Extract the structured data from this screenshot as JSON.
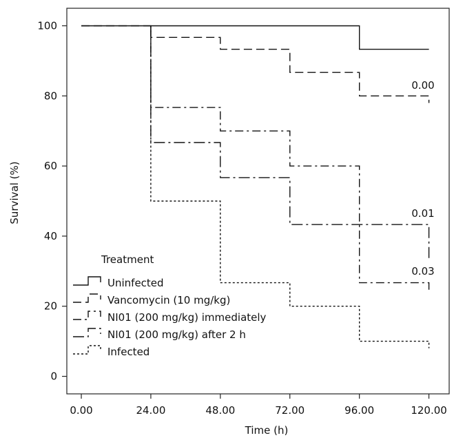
{
  "chart_data": {
    "type": "line",
    "step": true,
    "xlabel": "Time (h)",
    "ylabel": "Survival (%)",
    "xlim": [
      -5,
      127
    ],
    "ylim": [
      -5,
      105
    ],
    "x_ticks": [
      0,
      24,
      48,
      72,
      96,
      120
    ],
    "x_tick_labels": [
      "0.00",
      "24.00",
      "48.00",
      "72.00",
      "96.00",
      "120.00"
    ],
    "y_ticks": [
      0,
      20,
      40,
      60,
      80,
      100
    ],
    "y_tick_labels": [
      "0",
      "20",
      "40",
      "60",
      "80",
      "100"
    ],
    "grid": false,
    "legend": {
      "title": "Treatment",
      "placement": "bottom-left",
      "entries": [
        "Uninfected",
        "Vancomycin (10 mg/kg)",
        "NI01 (200 mg/kg) immediately",
        "NI01 (200 mg/kg) after 2 h",
        "Infected"
      ]
    },
    "series": [
      {
        "name": "Uninfected",
        "dash": "solid",
        "points": [
          [
            0,
            100
          ],
          [
            24,
            100
          ],
          [
            96,
            100
          ],
          [
            96,
            93.3
          ],
          [
            120,
            93.3
          ]
        ]
      },
      {
        "name": "Vancomycin (10 mg/kg)",
        "dash": "longdash",
        "points": [
          [
            0,
            100
          ],
          [
            24,
            100
          ],
          [
            24,
            96.7
          ],
          [
            48,
            96.7
          ],
          [
            48,
            93.3
          ],
          [
            72,
            93.3
          ],
          [
            72,
            86.7
          ],
          [
            96,
            86.7
          ],
          [
            96,
            80
          ],
          [
            120,
            80
          ],
          [
            120,
            78
          ]
        ]
      },
      {
        "name": "NI01 (200 mg/kg) immediately",
        "dash": "dashdot",
        "points": [
          [
            24,
            100
          ],
          [
            24,
            76.7
          ],
          [
            48,
            76.7
          ],
          [
            48,
            70
          ],
          [
            72,
            70
          ],
          [
            72,
            60
          ],
          [
            96,
            60
          ],
          [
            96,
            26.7
          ],
          [
            120,
            26.7
          ],
          [
            120,
            24
          ]
        ]
      },
      {
        "name": "NI01 (200 mg/kg) after 2 h",
        "dash": "longdashdot",
        "points": [
          [
            24,
            100
          ],
          [
            24,
            66.7
          ],
          [
            48,
            66.7
          ],
          [
            48,
            56.7
          ],
          [
            72,
            56.7
          ],
          [
            72,
            43.3
          ],
          [
            120,
            43.3
          ],
          [
            120,
            33
          ]
        ]
      },
      {
        "name": "Infected",
        "dash": "dotted",
        "points": [
          [
            24,
            100
          ],
          [
            24,
            50
          ],
          [
            48,
            50
          ],
          [
            48,
            26.7
          ],
          [
            72,
            26.7
          ],
          [
            72,
            20
          ],
          [
            96,
            20
          ],
          [
            96,
            10
          ],
          [
            120,
            10
          ],
          [
            120,
            8
          ]
        ]
      }
    ],
    "annotations": [
      {
        "text": "0.00",
        "x": 114,
        "y": 82
      },
      {
        "text": "0.01",
        "x": 114,
        "y": 45.5
      },
      {
        "text": "0.03",
        "x": 114,
        "y": 29
      }
    ]
  }
}
